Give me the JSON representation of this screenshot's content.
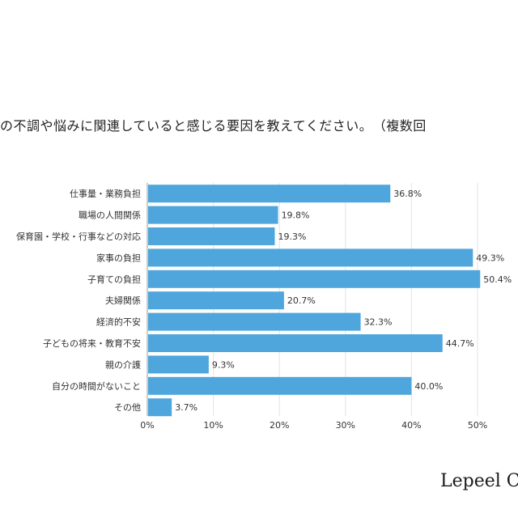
{
  "title": "の不調や悩みに関連していると感じる要因を教えてください。　（複数回",
  "brand": "Lepeel C",
  "chart_data": {
    "type": "bar",
    "orientation": "horizontal",
    "categories": [
      "仕事量・業務負担",
      "職場の人間関係",
      "保育園・学校・行事などの対応",
      "家事の負担",
      "子育ての負担",
      "夫婦関係",
      "経済的不安",
      "子どもの将来・教育不安",
      "親の介護",
      "自分の時間がないこと",
      "その他"
    ],
    "values": [
      36.8,
      19.8,
      19.3,
      49.3,
      50.4,
      20.7,
      32.3,
      44.7,
      9.3,
      40.0,
      3.7
    ],
    "value_labels": [
      "36.8%",
      "19.8%",
      "19.3%",
      "49.3%",
      "50.4%",
      "20.7%",
      "32.3%",
      "44.7%",
      "9.3%",
      "40.0%",
      "3.7%"
    ],
    "xlim": [
      0,
      50
    ],
    "x_ticks": [
      "0%",
      "10%",
      "20%",
      "30%",
      "40%",
      "50%"
    ],
    "grid": true,
    "bar_color": "#4ea6dc"
  }
}
